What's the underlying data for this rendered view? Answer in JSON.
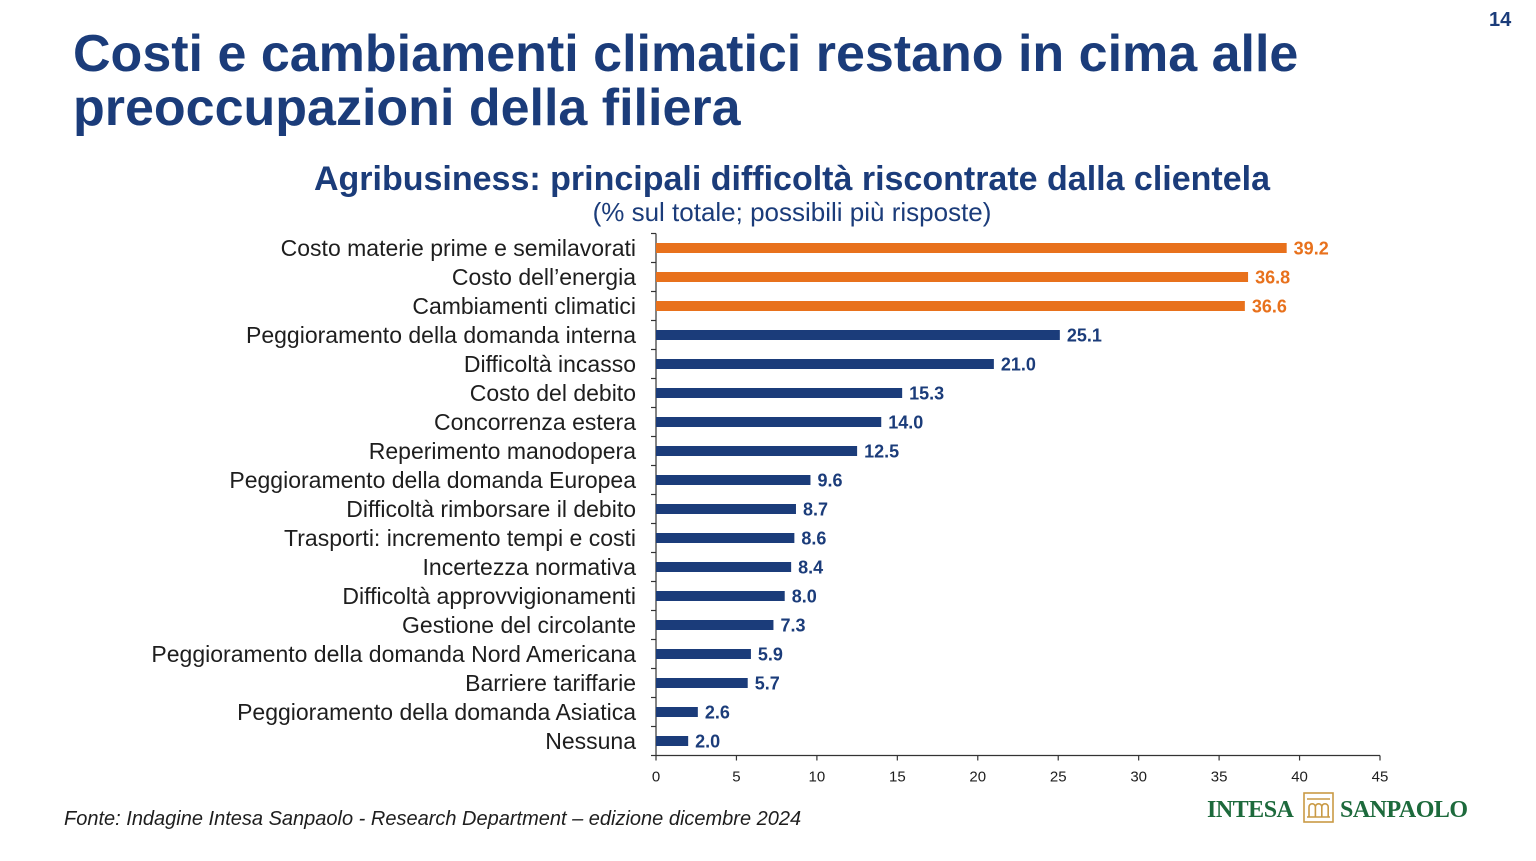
{
  "slide": {
    "page_number": "14",
    "title_lines": [
      "Costi e cambiamenti climatici restano in cima alle",
      "preoccupazioni della filiera"
    ]
  },
  "chart_data": {
    "type": "bar",
    "orientation": "horizontal",
    "title": "Agribusiness: principali difficoltà riscontrate dalla clientela",
    "subtitle": "(% sul totale; possibili più risposte)",
    "categories": [
      "Costo materie prime e semilavorati",
      "Costo dell’energia",
      "Cambiamenti climatici",
      "Peggioramento della domanda interna",
      "Difficoltà incasso",
      "Costo del debito",
      "Concorrenza estera",
      "Reperimento manodopera",
      "Peggioramento della domanda Europea",
      "Difficoltà rimborsare il debito",
      "Trasporti: incremento tempi e costi",
      "Incertezza normativa",
      "Difficoltà approvvigionamenti",
      "Gestione del circolante",
      "Peggioramento della domanda Nord Americana",
      "Barriere tariffarie",
      "Peggioramento della domanda Asiatica",
      "Nessuna"
    ],
    "values": [
      39.2,
      36.8,
      36.6,
      25.1,
      21.0,
      15.3,
      14.0,
      12.5,
      9.6,
      8.7,
      8.6,
      8.4,
      8.0,
      7.3,
      5.9,
      5.7,
      2.6,
      2.0
    ],
    "data_labels": [
      "39.2",
      "36.8",
      "36.6",
      "25.1",
      "21.0",
      "15.3",
      "14.0",
      "12.5",
      "9.6",
      "8.7",
      "8.6",
      "8.4",
      "8.0",
      "7.3",
      "5.9",
      "5.7",
      "2.6",
      "2.0"
    ],
    "bar_colors": [
      "#e8711c",
      "#e8711c",
      "#e8711c",
      "#1b3c7a",
      "#1b3c7a",
      "#1b3c7a",
      "#1b3c7a",
      "#1b3c7a",
      "#1b3c7a",
      "#1b3c7a",
      "#1b3c7a",
      "#1b3c7a",
      "#1b3c7a",
      "#1b3c7a",
      "#1b3c7a",
      "#1b3c7a",
      "#1b3c7a",
      "#1b3c7a"
    ],
    "xlim": [
      0,
      45
    ],
    "xticks": [
      0,
      5,
      10,
      15,
      20,
      25,
      30,
      35,
      40,
      45
    ],
    "grid": false
  },
  "footer": {
    "source": "Fonte: Indagine Intesa Sanpaolo - Research Department – edizione dicembre 2024"
  },
  "logo": {
    "left_text": "INTESA",
    "right_text": "SANPAOLO"
  },
  "colors": {
    "navy": "#1b3c7a",
    "orange": "#e8711c",
    "text": "#1e1e1e",
    "logo_text": "#1d6a3c",
    "logo_icon": "#c99a45"
  }
}
